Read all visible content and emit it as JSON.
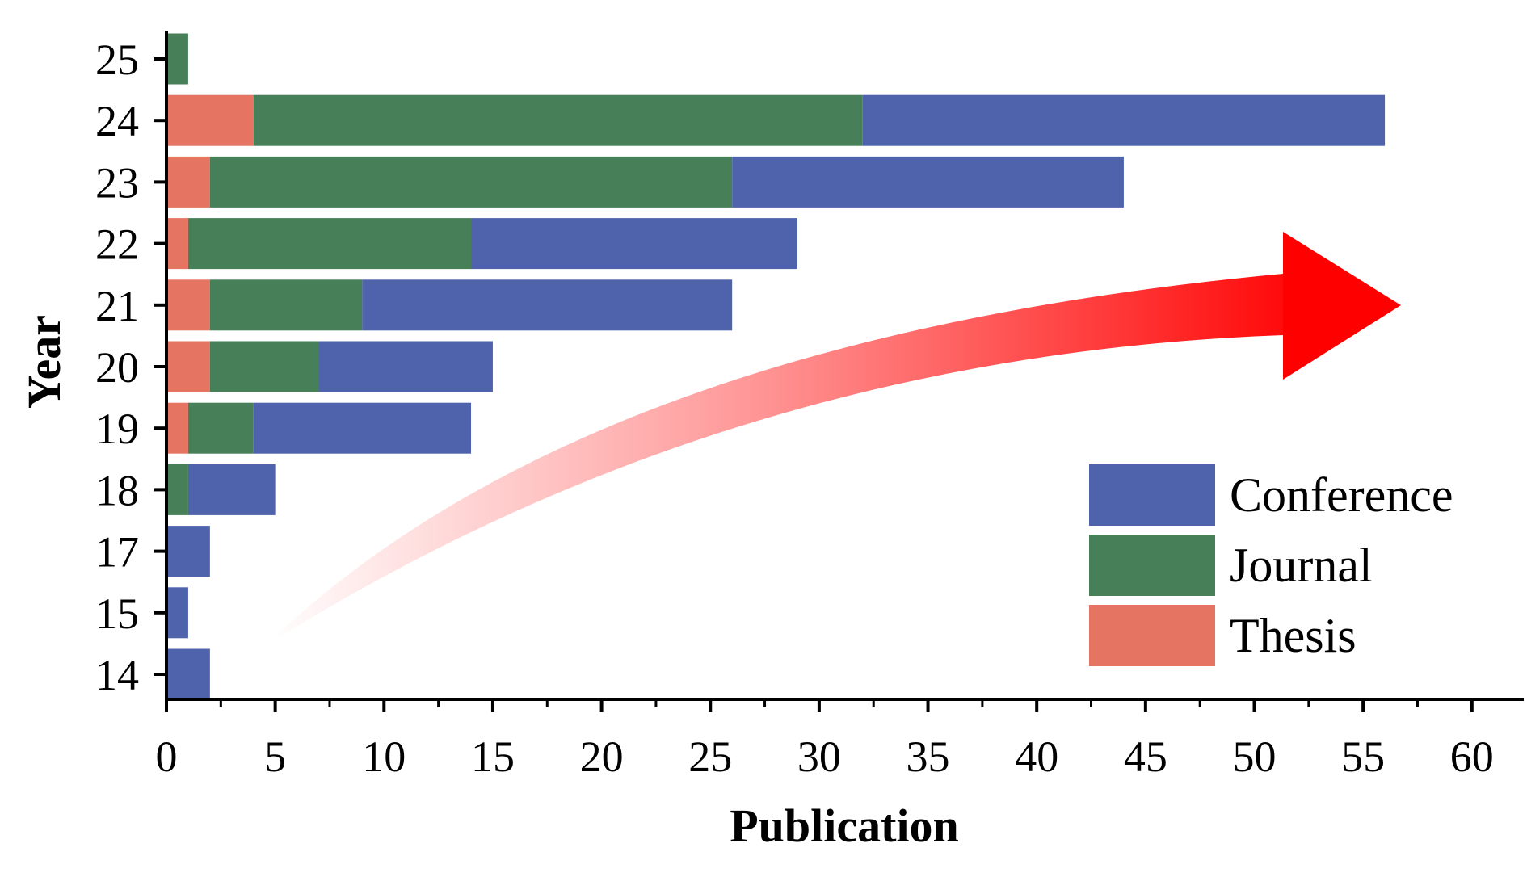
{
  "chart_data": {
    "type": "bar",
    "orientation": "horizontal",
    "stacked": true,
    "categories": [
      "14",
      "15",
      "17",
      "18",
      "19",
      "20",
      "21",
      "22",
      "23",
      "24",
      "25"
    ],
    "series": [
      {
        "name": "Thesis",
        "color": "#E57462",
        "values": [
          0,
          0,
          0,
          0,
          1,
          2,
          2,
          1,
          2,
          4,
          0
        ]
      },
      {
        "name": "Journal",
        "color": "#477F59",
        "values": [
          0,
          0,
          0,
          1,
          3,
          5,
          7,
          13,
          24,
          28,
          1
        ]
      },
      {
        "name": "Conference",
        "color": "#4F62AC",
        "values": [
          2,
          1,
          2,
          4,
          10,
          8,
          17,
          15,
          18,
          24,
          0
        ]
      }
    ],
    "legend_order": [
      "Conference",
      "Journal",
      "Thesis"
    ],
    "legend_position": "bottom-right",
    "xlabel": "Publication",
    "ylabel": "Year",
    "xlim": [
      0,
      62
    ],
    "xticks": [
      "0",
      "5",
      "10",
      "15",
      "20",
      "25",
      "30",
      "35",
      "40",
      "45",
      "50",
      "55",
      "60"
    ],
    "grid": false,
    "annotation": "red-gradient-curved-arrow",
    "annotation_color": "#FF0000"
  }
}
